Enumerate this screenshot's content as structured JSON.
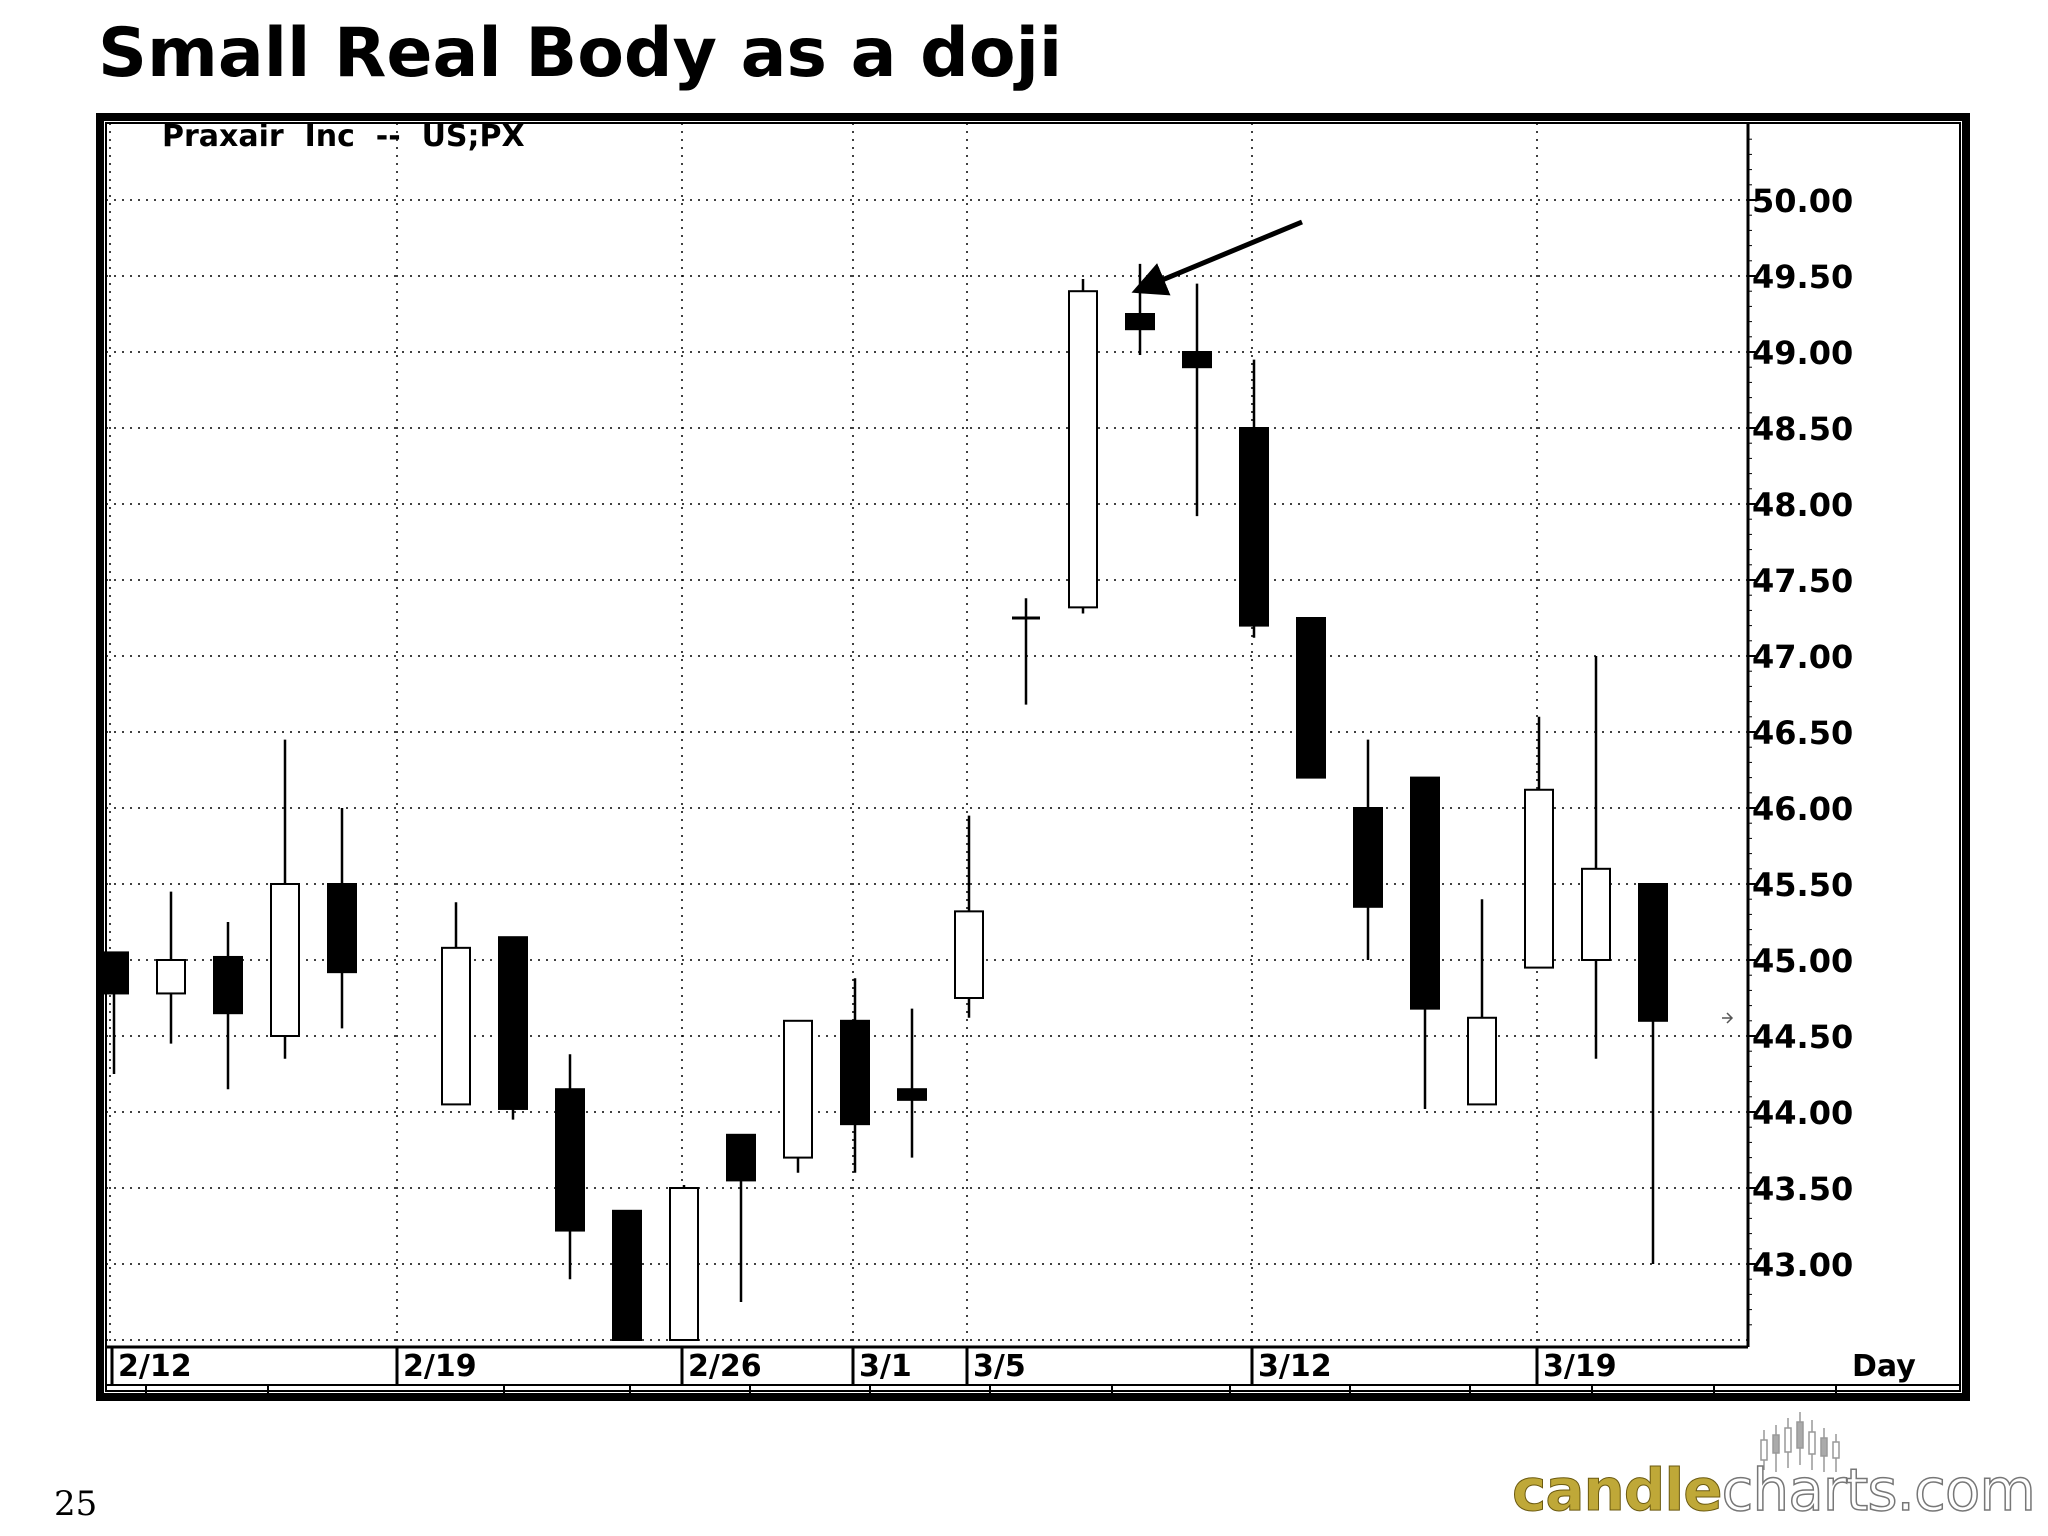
{
  "slide": {
    "title": "Small Real Body as a doji",
    "number": "25"
  },
  "logo": {
    "part1": "candle",
    "part2": "charts",
    "part3": ".com",
    "brand_color": "#bfa838"
  },
  "chart_data": {
    "type": "candlestick",
    "title": "Praxair  Inc  --  US;PX",
    "period_label": "Day",
    "ylim": [
      42.5,
      50.5
    ],
    "y_ticks": [
      "50.00",
      "49.50",
      "49.00",
      "48.50",
      "48.00",
      "47.50",
      "47.00",
      "46.50",
      "46.00",
      "45.50",
      "45.00",
      "44.50",
      "44.00",
      "43.50",
      "43.00"
    ],
    "x_date_labels": [
      {
        "label": "2/12",
        "slot": 0
      },
      {
        "label": "2/19",
        "slot": 5
      },
      {
        "label": "2/26",
        "slot": 10
      },
      {
        "label": "3/1",
        "slot": 13
      },
      {
        "label": "3/5",
        "slot": 15
      },
      {
        "label": "3/12",
        "slot": 20
      },
      {
        "label": "3/19",
        "slot": 25
      }
    ],
    "grid": true,
    "colors": {
      "up": "#ffffff",
      "down": "#000000",
      "outline": "#000000"
    },
    "candles": [
      {
        "slot": 0,
        "open": 45.05,
        "high": 45.05,
        "low": 44.25,
        "close": 44.78
      },
      {
        "slot": 1,
        "open": 44.78,
        "high": 45.45,
        "low": 44.45,
        "close": 45.0
      },
      {
        "slot": 2,
        "open": 45.02,
        "high": 45.25,
        "low": 44.15,
        "close": 44.65
      },
      {
        "slot": 3,
        "open": 44.5,
        "high": 46.45,
        "low": 44.35,
        "close": 45.5
      },
      {
        "slot": 4,
        "open": 45.5,
        "high": 46.0,
        "low": 44.55,
        "close": 44.92
      },
      {
        "slot": 6,
        "open": 44.05,
        "high": 45.38,
        "low": 44.05,
        "close": 45.08
      },
      {
        "slot": 7,
        "open": 45.15,
        "high": 45.15,
        "low": 43.95,
        "close": 44.02
      },
      {
        "slot": 8,
        "open": 44.15,
        "high": 44.38,
        "low": 42.9,
        "close": 43.22
      },
      {
        "slot": 9,
        "open": 43.35,
        "high": 43.35,
        "low": 42.5,
        "close": 42.5
      },
      {
        "slot": 10,
        "open": 42.5,
        "high": 43.52,
        "low": 42.5,
        "close": 43.5
      },
      {
        "slot": 11,
        "open": 43.85,
        "high": 43.85,
        "low": 42.75,
        "close": 43.55
      },
      {
        "slot": 12,
        "open": 43.7,
        "high": 44.6,
        "low": 43.6,
        "close": 44.6
      },
      {
        "slot": 13,
        "open": 44.6,
        "high": 44.88,
        "low": 43.6,
        "close": 43.92
      },
      {
        "slot": 14,
        "open": 44.15,
        "high": 44.68,
        "low": 43.7,
        "close": 44.08
      },
      {
        "slot": 15,
        "open": 44.75,
        "high": 45.95,
        "low": 44.62,
        "close": 45.32
      },
      {
        "slot": 16,
        "open": 47.25,
        "high": 47.38,
        "low": 46.68,
        "close": 47.25
      },
      {
        "slot": 17,
        "open": 47.32,
        "high": 49.48,
        "low": 47.28,
        "close": 49.4
      },
      {
        "slot": 18,
        "open": 49.25,
        "high": 49.58,
        "low": 48.98,
        "close": 49.15
      },
      {
        "slot": 19,
        "open": 49.0,
        "high": 49.45,
        "low": 47.92,
        "close": 48.9
      },
      {
        "slot": 20,
        "open": 48.5,
        "high": 48.95,
        "low": 47.12,
        "close": 47.2
      },
      {
        "slot": 21,
        "open": 47.25,
        "high": 47.25,
        "low": 46.2,
        "close": 46.2
      },
      {
        "slot": 22,
        "open": 46.0,
        "high": 46.45,
        "low": 45.0,
        "close": 45.35
      },
      {
        "slot": 23,
        "open": 46.2,
        "high": 46.2,
        "low": 44.02,
        "close": 44.68
      },
      {
        "slot": 24,
        "open": 44.05,
        "high": 45.4,
        "low": 44.05,
        "close": 44.62
      },
      {
        "slot": 25,
        "open": 44.95,
        "high": 46.6,
        "low": 44.95,
        "close": 46.12
      },
      {
        "slot": 26,
        "open": 45.0,
        "high": 47.0,
        "low": 44.35,
        "close": 45.6
      },
      {
        "slot": 27,
        "open": 45.5,
        "high": 45.5,
        "low": 43.0,
        "close": 44.6
      }
    ],
    "annotation": {
      "type": "arrow",
      "target_slot": 18,
      "label": ""
    }
  }
}
